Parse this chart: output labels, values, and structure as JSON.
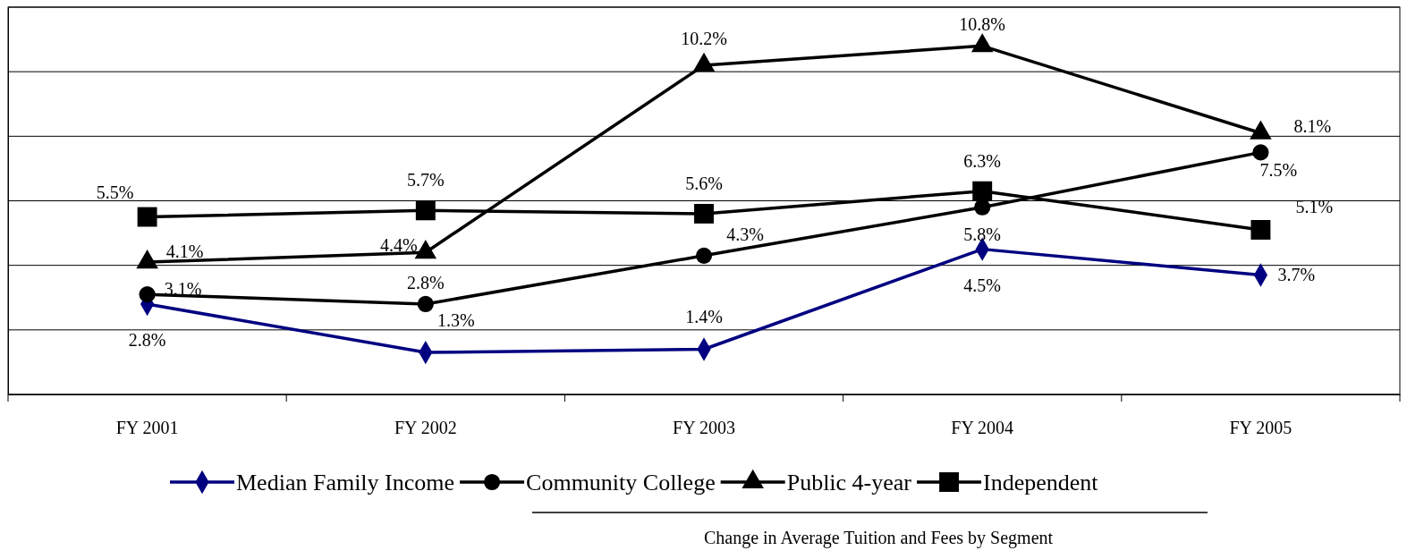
{
  "chart_data": {
    "type": "line",
    "title": "Change in Average Tuition and Fees by Segment",
    "categories": [
      "FY 2001",
      "FY 2002",
      "FY 2003",
      "FY 2004",
      "FY 2005"
    ],
    "series": [
      {
        "name": "Median Family Income",
        "color": "#000080",
        "values": [
          2.8,
          1.3,
          1.4,
          4.5,
          3.7
        ],
        "marker": "diamond",
        "value_labels": [
          "2.8%",
          "1.3%",
          "1.4%",
          "4.5%",
          "3.7%"
        ]
      },
      {
        "name": "Community College",
        "color": "#000000",
        "values": [
          3.1,
          2.8,
          4.3,
          5.8,
          7.5
        ],
        "marker": "circle",
        "value_labels": [
          "3.1%",
          "2.8%",
          "4.3%",
          "5.8%",
          "7.5%"
        ]
      },
      {
        "name": "Public 4-year",
        "color": "#000000",
        "values": [
          4.1,
          4.4,
          10.2,
          10.8,
          8.1
        ],
        "marker": "triangle",
        "value_labels": [
          "4.1%",
          "4.4%",
          "10.2%",
          "10.8%",
          "8.1%"
        ]
      },
      {
        "name": "Independent",
        "color": "#000000",
        "values": [
          5.5,
          5.7,
          5.6,
          6.3,
          5.1
        ],
        "marker": "square",
        "value_labels": [
          "5.5%",
          "5.7%",
          "5.6%",
          "6.3%",
          "5.1%"
        ]
      }
    ],
    "ylim": [
      0,
      12
    ],
    "yticks": [
      {
        "value": 0,
        "label": null
      },
      {
        "value": 2,
        "label": null
      },
      {
        "value": 4,
        "label": null
      },
      {
        "value": 6,
        "label": null
      },
      {
        "value": 8,
        "label": null
      },
      {
        "value": 10,
        "label": null
      },
      {
        "value": 12,
        "label": null
      }
    ],
    "tick_labels": "x",
    "grid": "y",
    "legend": "bottom",
    "line_style": "solid"
  }
}
